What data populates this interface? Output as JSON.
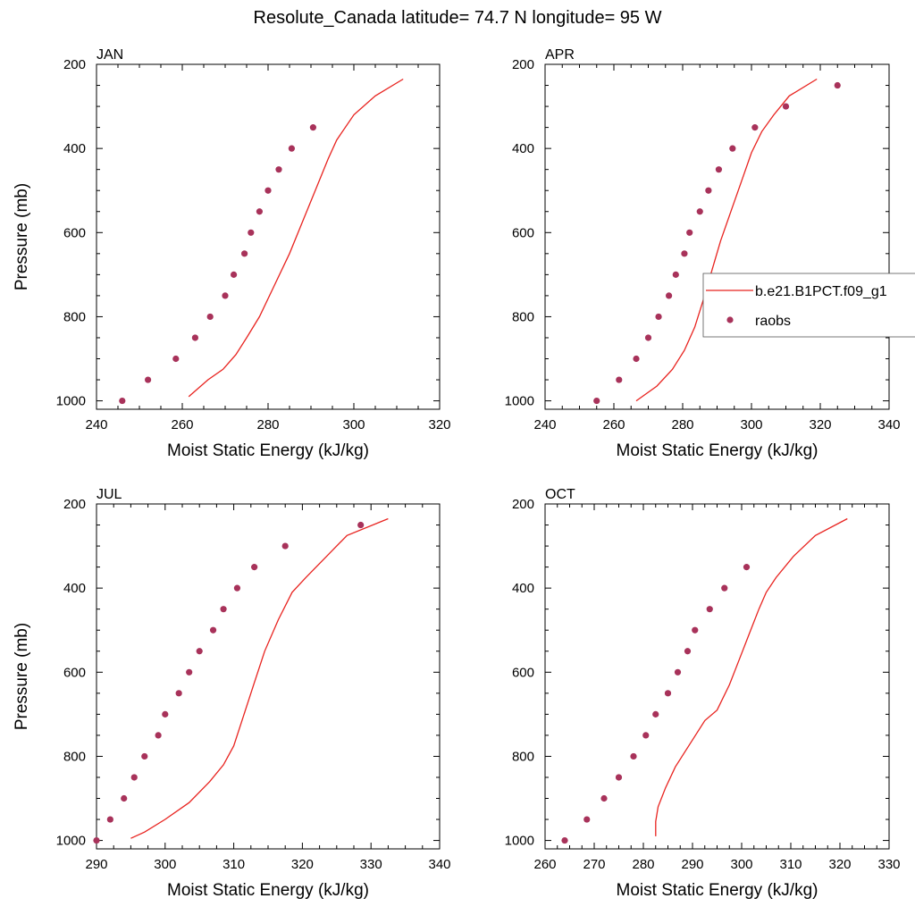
{
  "figure": {
    "title": "Resolute_Canada  latitude= 74.7 N longitude= 95 W",
    "legend": {
      "items": [
        {
          "label": "b.e21.B1PCT.f09_g1",
          "kind": "line",
          "color": "#e8231f"
        },
        {
          "label": "raobs",
          "kind": "marker",
          "color": "#a8325a"
        }
      ],
      "placement": "right-middle, overlapping APR panel"
    },
    "line_color": "#e8231f",
    "marker_color": "#a8325a"
  },
  "chart_data": [
    {
      "type": "line",
      "panel": "JAN",
      "title": "JAN",
      "xlabel": "Moist Static Energy (kJ/kg)",
      "ylabel": "Pressure (mb)",
      "xlim": [
        240,
        320
      ],
      "ylim": [
        1020,
        200
      ],
      "y_inverted": true,
      "xticks": [
        240,
        260,
        280,
        300,
        320
      ],
      "yticks": [
        200,
        400,
        600,
        800,
        1000
      ],
      "series": [
        {
          "name": "b.e21.B1PCT.f09_g1",
          "kind": "line",
          "x": [
            261.5,
            266,
            269.5,
            272.5,
            275,
            278,
            281.5,
            285,
            288,
            291,
            294,
            296,
            300,
            305,
            311.5
          ],
          "y": [
            990,
            950,
            925,
            890,
            850,
            800,
            725,
            650,
            575,
            500,
            425,
            380,
            320,
            275,
            235
          ]
        },
        {
          "name": "raobs",
          "kind": "scatter",
          "x": [
            246,
            252,
            258.5,
            263,
            266.5,
            270,
            272,
            274.5,
            276,
            278,
            280,
            282.5,
            285.5,
            290.5
          ],
          "y": [
            1000,
            950,
            900,
            850,
            800,
            750,
            700,
            650,
            600,
            550,
            500,
            450,
            400,
            350
          ]
        }
      ]
    },
    {
      "type": "line",
      "panel": "APR",
      "title": "APR",
      "xlabel": "Moist Static Energy (kJ/kg)",
      "ylabel": "",
      "xlim": [
        240,
        340
      ],
      "ylim": [
        1020,
        200
      ],
      "y_inverted": true,
      "xticks": [
        240,
        260,
        280,
        300,
        320,
        340
      ],
      "yticks": [
        200,
        400,
        600,
        800,
        1000
      ],
      "series": [
        {
          "name": "b.e21.B1PCT.f09_g1",
          "kind": "line",
          "x": [
            266.5,
            272.5,
            277,
            280.5,
            283.5,
            286,
            288.5,
            291,
            294,
            297,
            300,
            303,
            306.5,
            311,
            319
          ],
          "y": [
            1000,
            965,
            925,
            880,
            825,
            760,
            690,
            620,
            550,
            480,
            410,
            360,
            320,
            275,
            235
          ]
        },
        {
          "name": "raobs",
          "kind": "scatter",
          "x": [
            255,
            261.5,
            266.5,
            270,
            273,
            276,
            278,
            280.5,
            282,
            285,
            287.5,
            290.5,
            294.5,
            301,
            310,
            325
          ],
          "y": [
            1000,
            950,
            900,
            850,
            800,
            750,
            700,
            650,
            600,
            550,
            500,
            450,
            400,
            350,
            300,
            250
          ]
        }
      ]
    },
    {
      "type": "line",
      "panel": "JUL",
      "title": "JUL",
      "xlabel": "Moist Static Energy (kJ/kg)",
      "ylabel": "Pressure (mb)",
      "xlim": [
        290,
        340
      ],
      "ylim": [
        1020,
        200
      ],
      "y_inverted": true,
      "xticks": [
        290,
        300,
        310,
        320,
        330,
        340
      ],
      "yticks": [
        200,
        400,
        600,
        800,
        1000
      ],
      "series": [
        {
          "name": "b.e21.B1PCT.f09_g1",
          "kind": "line",
          "x": [
            295,
            297,
            300,
            303.5,
            306.5,
            308.5,
            310,
            311.5,
            313,
            314.5,
            316.5,
            318.5,
            320.5,
            323.5,
            326.5,
            332.5
          ],
          "y": [
            995,
            980,
            950,
            910,
            860,
            820,
            775,
            700,
            625,
            550,
            475,
            410,
            375,
            325,
            275,
            235
          ]
        },
        {
          "name": "raobs",
          "kind": "scatter",
          "x": [
            290,
            292,
            294,
            295.5,
            297,
            299,
            300,
            302,
            303.5,
            305,
            307,
            308.5,
            310.5,
            313,
            317.5,
            328.5
          ],
          "y": [
            1000,
            950,
            900,
            850,
            800,
            750,
            700,
            650,
            600,
            550,
            500,
            450,
            400,
            350,
            300,
            250
          ]
        }
      ]
    },
    {
      "type": "line",
      "panel": "OCT",
      "title": "OCT",
      "xlabel": "Moist Static Energy (kJ/kg)",
      "ylabel": "",
      "xlim": [
        260,
        330
      ],
      "ylim": [
        1020,
        200
      ],
      "y_inverted": true,
      "xticks": [
        260,
        270,
        280,
        290,
        300,
        310,
        320,
        330
      ],
      "yticks": [
        200,
        400,
        600,
        800,
        1000
      ],
      "series": [
        {
          "name": "b.e21.B1PCT.f09_g1",
          "kind": "line",
          "x": [
            282.5,
            282.5,
            283,
            284.5,
            286.5,
            289.5,
            292.5,
            295,
            297.5,
            299.5,
            301.5,
            303.5,
            305,
            307,
            310.5,
            315,
            321.5
          ],
          "y": [
            990,
            955,
            920,
            875,
            825,
            770,
            715,
            690,
            630,
            570,
            510,
            450,
            410,
            375,
            325,
            275,
            235
          ]
        },
        {
          "name": "raobs",
          "kind": "scatter",
          "x": [
            264,
            268.5,
            272,
            275,
            278,
            280.5,
            282.5,
            285,
            287,
            289,
            290.5,
            293.5,
            296.5,
            301
          ],
          "y": [
            1000,
            950,
            900,
            850,
            800,
            750,
            700,
            650,
            600,
            550,
            500,
            450,
            400,
            350
          ]
        }
      ]
    }
  ]
}
